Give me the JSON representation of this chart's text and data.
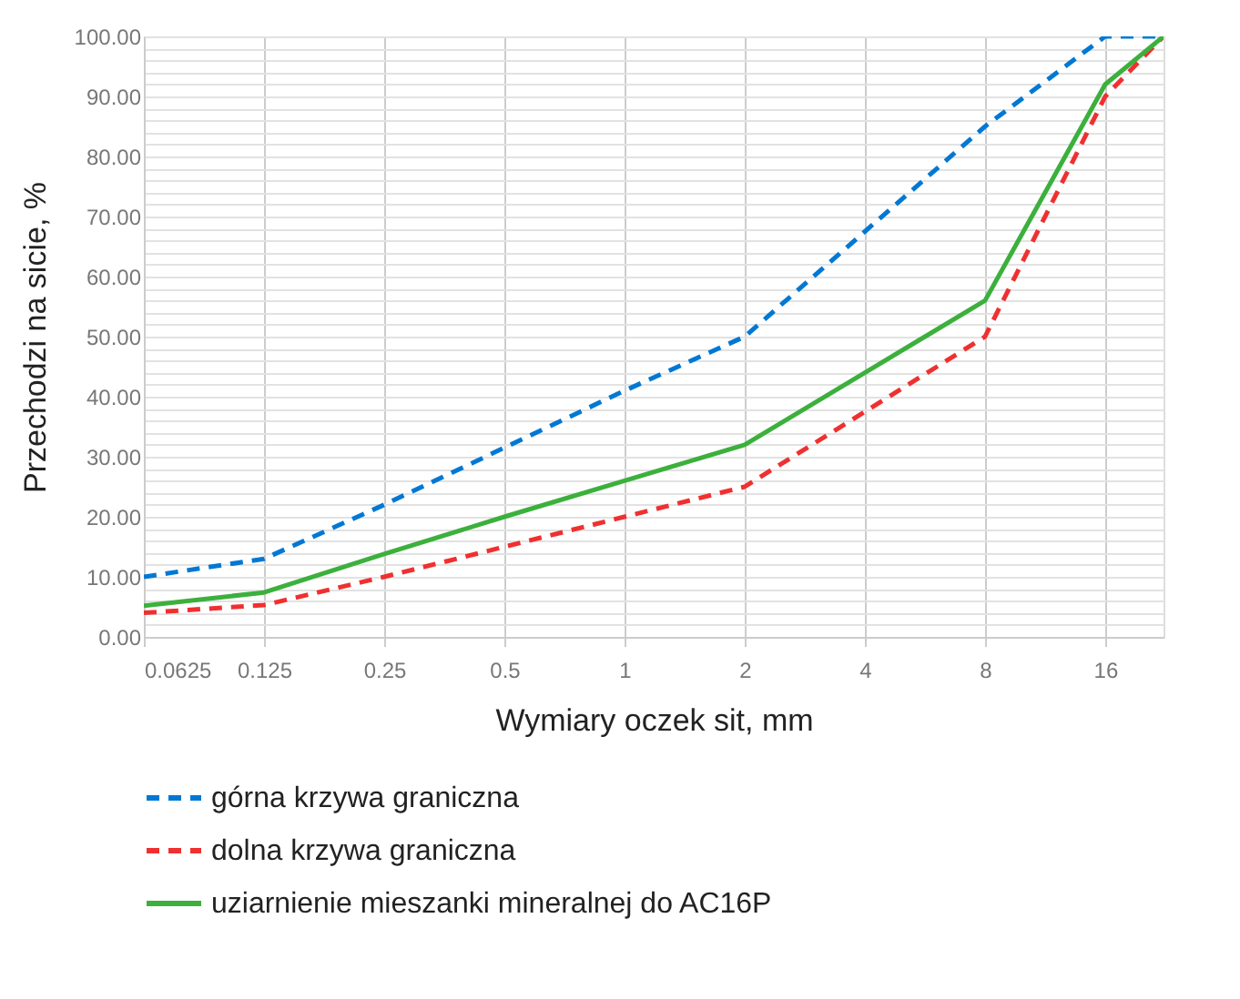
{
  "chart_data": {
    "type": "line",
    "xlabel": "Wymiary oczek sit, mm",
    "ylabel": "Przechodzi na sicie, %",
    "x": [
      0.0625,
      0.125,
      0.25,
      0.5,
      1,
      2,
      4,
      8,
      16,
      22.4
    ],
    "log": "x",
    "xlim": [
      0.0625,
      22.4
    ],
    "xticks": [
      0.0625,
      0.125,
      0.25,
      0.5,
      1,
      2,
      4,
      8,
      16
    ],
    "ylim": [
      0,
      100
    ],
    "yticks": [
      {
        "value": 0,
        "label": "0.00"
      },
      {
        "value": 2,
        "label": null
      },
      {
        "value": 4,
        "label": null
      },
      {
        "value": 6,
        "label": null
      },
      {
        "value": 8,
        "label": null
      },
      {
        "value": 10,
        "label": "10.00"
      },
      {
        "value": 12,
        "label": null
      },
      {
        "value": 14,
        "label": null
      },
      {
        "value": 16,
        "label": null
      },
      {
        "value": 18,
        "label": null
      },
      {
        "value": 20,
        "label": "20.00"
      },
      {
        "value": 22,
        "label": null
      },
      {
        "value": 24,
        "label": null
      },
      {
        "value": 26,
        "label": null
      },
      {
        "value": 28,
        "label": null
      },
      {
        "value": 30,
        "label": "30.00"
      },
      {
        "value": 32,
        "label": null
      },
      {
        "value": 34,
        "label": null
      },
      {
        "value": 36,
        "label": null
      },
      {
        "value": 38,
        "label": null
      },
      {
        "value": 40,
        "label": "40.00"
      },
      {
        "value": 42,
        "label": null
      },
      {
        "value": 44,
        "label": null
      },
      {
        "value": 46,
        "label": null
      },
      {
        "value": 48,
        "label": null
      },
      {
        "value": 50,
        "label": "50.00"
      },
      {
        "value": 52,
        "label": null
      },
      {
        "value": 54,
        "label": null
      },
      {
        "value": 56,
        "label": null
      },
      {
        "value": 58,
        "label": null
      },
      {
        "value": 60,
        "label": "60.00"
      },
      {
        "value": 62,
        "label": null
      },
      {
        "value": 64,
        "label": null
      },
      {
        "value": 66,
        "label": null
      },
      {
        "value": 68,
        "label": null
      },
      {
        "value": 70,
        "label": "70.00"
      },
      {
        "value": 72,
        "label": null
      },
      {
        "value": 74,
        "label": null
      },
      {
        "value": 76,
        "label": null
      },
      {
        "value": 78,
        "label": null
      },
      {
        "value": 80,
        "label": "80.00"
      },
      {
        "value": 82,
        "label": null
      },
      {
        "value": 84,
        "label": null
      },
      {
        "value": 86,
        "label": null
      },
      {
        "value": 88,
        "label": null
      },
      {
        "value": 90,
        "label": "90.00"
      },
      {
        "value": 92,
        "label": null
      },
      {
        "value": 94,
        "label": null
      },
      {
        "value": 96,
        "label": null
      },
      {
        "value": 98,
        "label": null
      },
      {
        "value": 100,
        "label": "100.00"
      }
    ],
    "grid": true,
    "legend": "bottom",
    "marker": "none",
    "series": [
      {
        "name": "górna krzywa graniczna",
        "color": "#0078d4",
        "line_style": "dashed",
        "values": [
          10,
          13,
          22,
          31.5,
          41,
          50,
          67.5,
          85,
          100,
          100
        ]
      },
      {
        "name": "dolna krzywa graniczna",
        "color": "#f03030",
        "line_style": "dashed",
        "values": [
          4,
          5.3,
          10,
          15,
          20,
          25,
          37.5,
          50,
          90,
          100
        ]
      },
      {
        "name": "uziarnienie mieszanki mineralnej do AC16P",
        "color": "#3cb03c",
        "line_style": "solid",
        "values": [
          5.2,
          7.4,
          13.8,
          20,
          26,
          32,
          44,
          56,
          92,
          100
        ]
      }
    ]
  }
}
